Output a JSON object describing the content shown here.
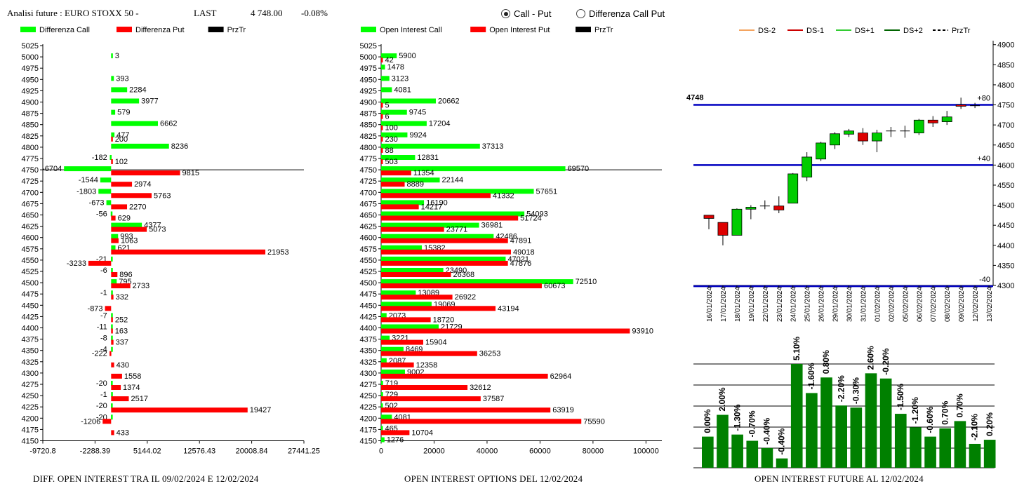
{
  "header": {
    "title": "Analisi future : EURO STOXX 50 -",
    "last_label": "LAST",
    "last_value": "4 748.00",
    "change": "-0.08%"
  },
  "view_options": [
    {
      "label": "Call - Put",
      "selected": true
    },
    {
      "label": "Differenza Call Put",
      "selected": false
    }
  ],
  "colors": {
    "call": "#00ff00",
    "put": "#ff0000",
    "price": "#000000",
    "level": "#0000c0",
    "volume": "#008000"
  },
  "chart_data": [
    {
      "type": "bar",
      "orientation": "horizontal",
      "footer": "DIFF. OPEN INTEREST TRA IL 09/02/2024 E 12/02/2024",
      "legend": [
        "Differenza Call",
        "Differenza Put",
        "PrzTr"
      ],
      "strikes": [
        5025,
        5000,
        4975,
        4950,
        4925,
        4900,
        4875,
        4850,
        4825,
        4800,
        4775,
        4750,
        4725,
        4700,
        4675,
        4650,
        4625,
        4600,
        4575,
        4550,
        4525,
        4500,
        4475,
        4450,
        4425,
        4400,
        4375,
        4350,
        4325,
        4300,
        4275,
        4250,
        4225,
        4200,
        4175,
        4150
      ],
      "x_ticks": [
        "-9720.8",
        "-2288.39",
        "5144.02",
        "12576.43",
        "20008.84",
        "27441.25"
      ],
      "xlim": [
        -9720.8,
        27441.25
      ],
      "price_line": 4750,
      "series": [
        {
          "name": "Differenza Call",
          "values": [
            null,
            3,
            null,
            393,
            2284,
            3977,
            579,
            6662,
            477,
            8236,
            -182,
            -6704,
            -1544,
            -1803,
            -673,
            -56,
            4377,
            993,
            621,
            -21,
            -6,
            795,
            -1,
            null,
            -7,
            -11,
            -8,
            -4,
            null,
            null,
            -20,
            -1,
            -20,
            -20,
            null,
            null
          ]
        },
        {
          "name": "Differenza Put",
          "values": [
            null,
            null,
            null,
            null,
            null,
            null,
            null,
            null,
            200,
            null,
            102,
            9815,
            2974,
            5763,
            2270,
            629,
            5073,
            1063,
            21953,
            -3233,
            896,
            2733,
            332,
            -873,
            252,
            163,
            337,
            -222,
            430,
            1558,
            1374,
            2517,
            19427,
            -1206,
            433,
            null
          ]
        }
      ]
    },
    {
      "type": "bar",
      "orientation": "horizontal",
      "footer": "OPEN INTEREST OPTIONS DEL 12/02/2024",
      "legend": [
        "Open Interest Call",
        "Open Interest Put",
        "PrzTr"
      ],
      "strikes": [
        5025,
        5000,
        4975,
        4950,
        4925,
        4900,
        4875,
        4850,
        4825,
        4800,
        4775,
        4750,
        4725,
        4700,
        4675,
        4650,
        4625,
        4600,
        4575,
        4550,
        4525,
        4500,
        4475,
        4450,
        4425,
        4400,
        4375,
        4350,
        4325,
        4300,
        4275,
        4250,
        4225,
        4200,
        4175,
        4150
      ],
      "x_ticks": [
        "0",
        "20000",
        "40000",
        "60000",
        "80000",
        "100000"
      ],
      "xlim": [
        0,
        106000
      ],
      "price_line": 4750,
      "series": [
        {
          "name": "Open Interest Call",
          "values": [
            null,
            5900,
            1478,
            3123,
            4081,
            20662,
            9745,
            17204,
            9924,
            37313,
            12831,
            69570,
            22144,
            57651,
            16190,
            54093,
            36981,
            42486,
            15382,
            47021,
            23490,
            72510,
            13089,
            19069,
            2073,
            21729,
            3221,
            8469,
            2087,
            9002,
            719,
            729,
            502,
            4081,
            465,
            1276
          ]
        },
        {
          "name": "Open Interest Put",
          "values": [
            null,
            42,
            null,
            null,
            null,
            5,
            6,
            100,
            230,
            88,
            503,
            11354,
            8889,
            41332,
            14217,
            51724,
            23771,
            47891,
            49018,
            47876,
            26368,
            60673,
            26922,
            43194,
            18720,
            93910,
            15904,
            36253,
            12358,
            62964,
            32612,
            37587,
            63919,
            75590,
            10704,
            null
          ]
        }
      ]
    },
    {
      "type": "candlestick",
      "legend": [
        "DS-2",
        "DS-1",
        "DS+1",
        "DS+2",
        "PrzTr"
      ],
      "legend_colors": [
        "#f4a460",
        "#cc0000",
        "#33cc33",
        "#006400",
        "#000000"
      ],
      "y_ticks": [
        "4900",
        "4850",
        "4800",
        "4750",
        "4700",
        "4650",
        "4600",
        "4550",
        "4500",
        "4450",
        "4400",
        "4350",
        "4300"
      ],
      "ylim": [
        4300,
        4910
      ],
      "price_label": "4748",
      "levels": [
        {
          "value": 4750,
          "label": "+80"
        },
        {
          "value": 4600,
          "label": "+40"
        },
        {
          "value": 4298,
          "label": "-40"
        }
      ],
      "dates": [
        "16/01/2024",
        "17/01/2024",
        "18/01/2024",
        "19/01/2024",
        "22/01/2024",
        "23/01/2024",
        "24/01/2024",
        "25/01/2024",
        "26/01/2024",
        "29/01/2024",
        "30/01/2024",
        "31/01/2024",
        "01/02/2024",
        "02/02/2024",
        "05/02/2024",
        "06/02/2024",
        "07/02/2024",
        "08/02/2024",
        "09/02/2024",
        "12/02/2024",
        "13/02/2024"
      ],
      "ohlc": [
        [
          4475,
          4475,
          4440,
          4467
        ],
        [
          4457,
          4457,
          4400,
          4425
        ],
        [
          4425,
          4492,
          4425,
          4490
        ],
        [
          4490,
          4500,
          4465,
          4495
        ],
        [
          4498,
          4512,
          4490,
          4498
        ],
        [
          4498,
          4522,
          4480,
          4488
        ],
        [
          4505,
          4580,
          4505,
          4578
        ],
        [
          4570,
          4632,
          4560,
          4620
        ],
        [
          4615,
          4658,
          4610,
          4655
        ],
        [
          4650,
          4682,
          4640,
          4678
        ],
        [
          4677,
          4690,
          4670,
          4685
        ],
        [
          4680,
          4692,
          4650,
          4660
        ],
        [
          4660,
          4688,
          4632,
          4680
        ],
        [
          4685,
          4695,
          4670,
          4685
        ],
        [
          4685,
          4698,
          4668,
          4685
        ],
        [
          4680,
          4715,
          4675,
          4712
        ],
        [
          4712,
          4722,
          4695,
          4705
        ],
        [
          4708,
          4735,
          4700,
          4720
        ],
        [
          4750,
          4768,
          4740,
          4748
        ],
        [
          4748,
          4755,
          4742,
          4748
        ],
        null
      ]
    },
    {
      "type": "bar",
      "footer": "OPEN INTEREST FUTURE AL 12/02/2024",
      "value_unit": "relative open interest level, 0 = baseline, 1 = top gridline",
      "values": [
        0.3,
        0.51,
        0.32,
        0.26,
        0.19,
        0.09,
        1.0,
        0.72,
        0.87,
        0.6,
        0.58,
        0.91,
        0.86,
        0.52,
        0.39,
        0.3,
        0.38,
        0.45,
        0.23,
        0.27
      ],
      "labels": [
        "0.00%",
        "2.00%",
        "-1.30%",
        "-0.70%",
        "-0.40%",
        "-0.40%",
        "5.10%",
        "-1.60%",
        "0.80%",
        "-2.20%",
        "-0.30%",
        "2.60%",
        "-0.20%",
        "-1.50%",
        "-1.20%",
        "-0.60%",
        "0.70%",
        "0.70%",
        "-2.10%",
        "0.20%"
      ]
    }
  ]
}
